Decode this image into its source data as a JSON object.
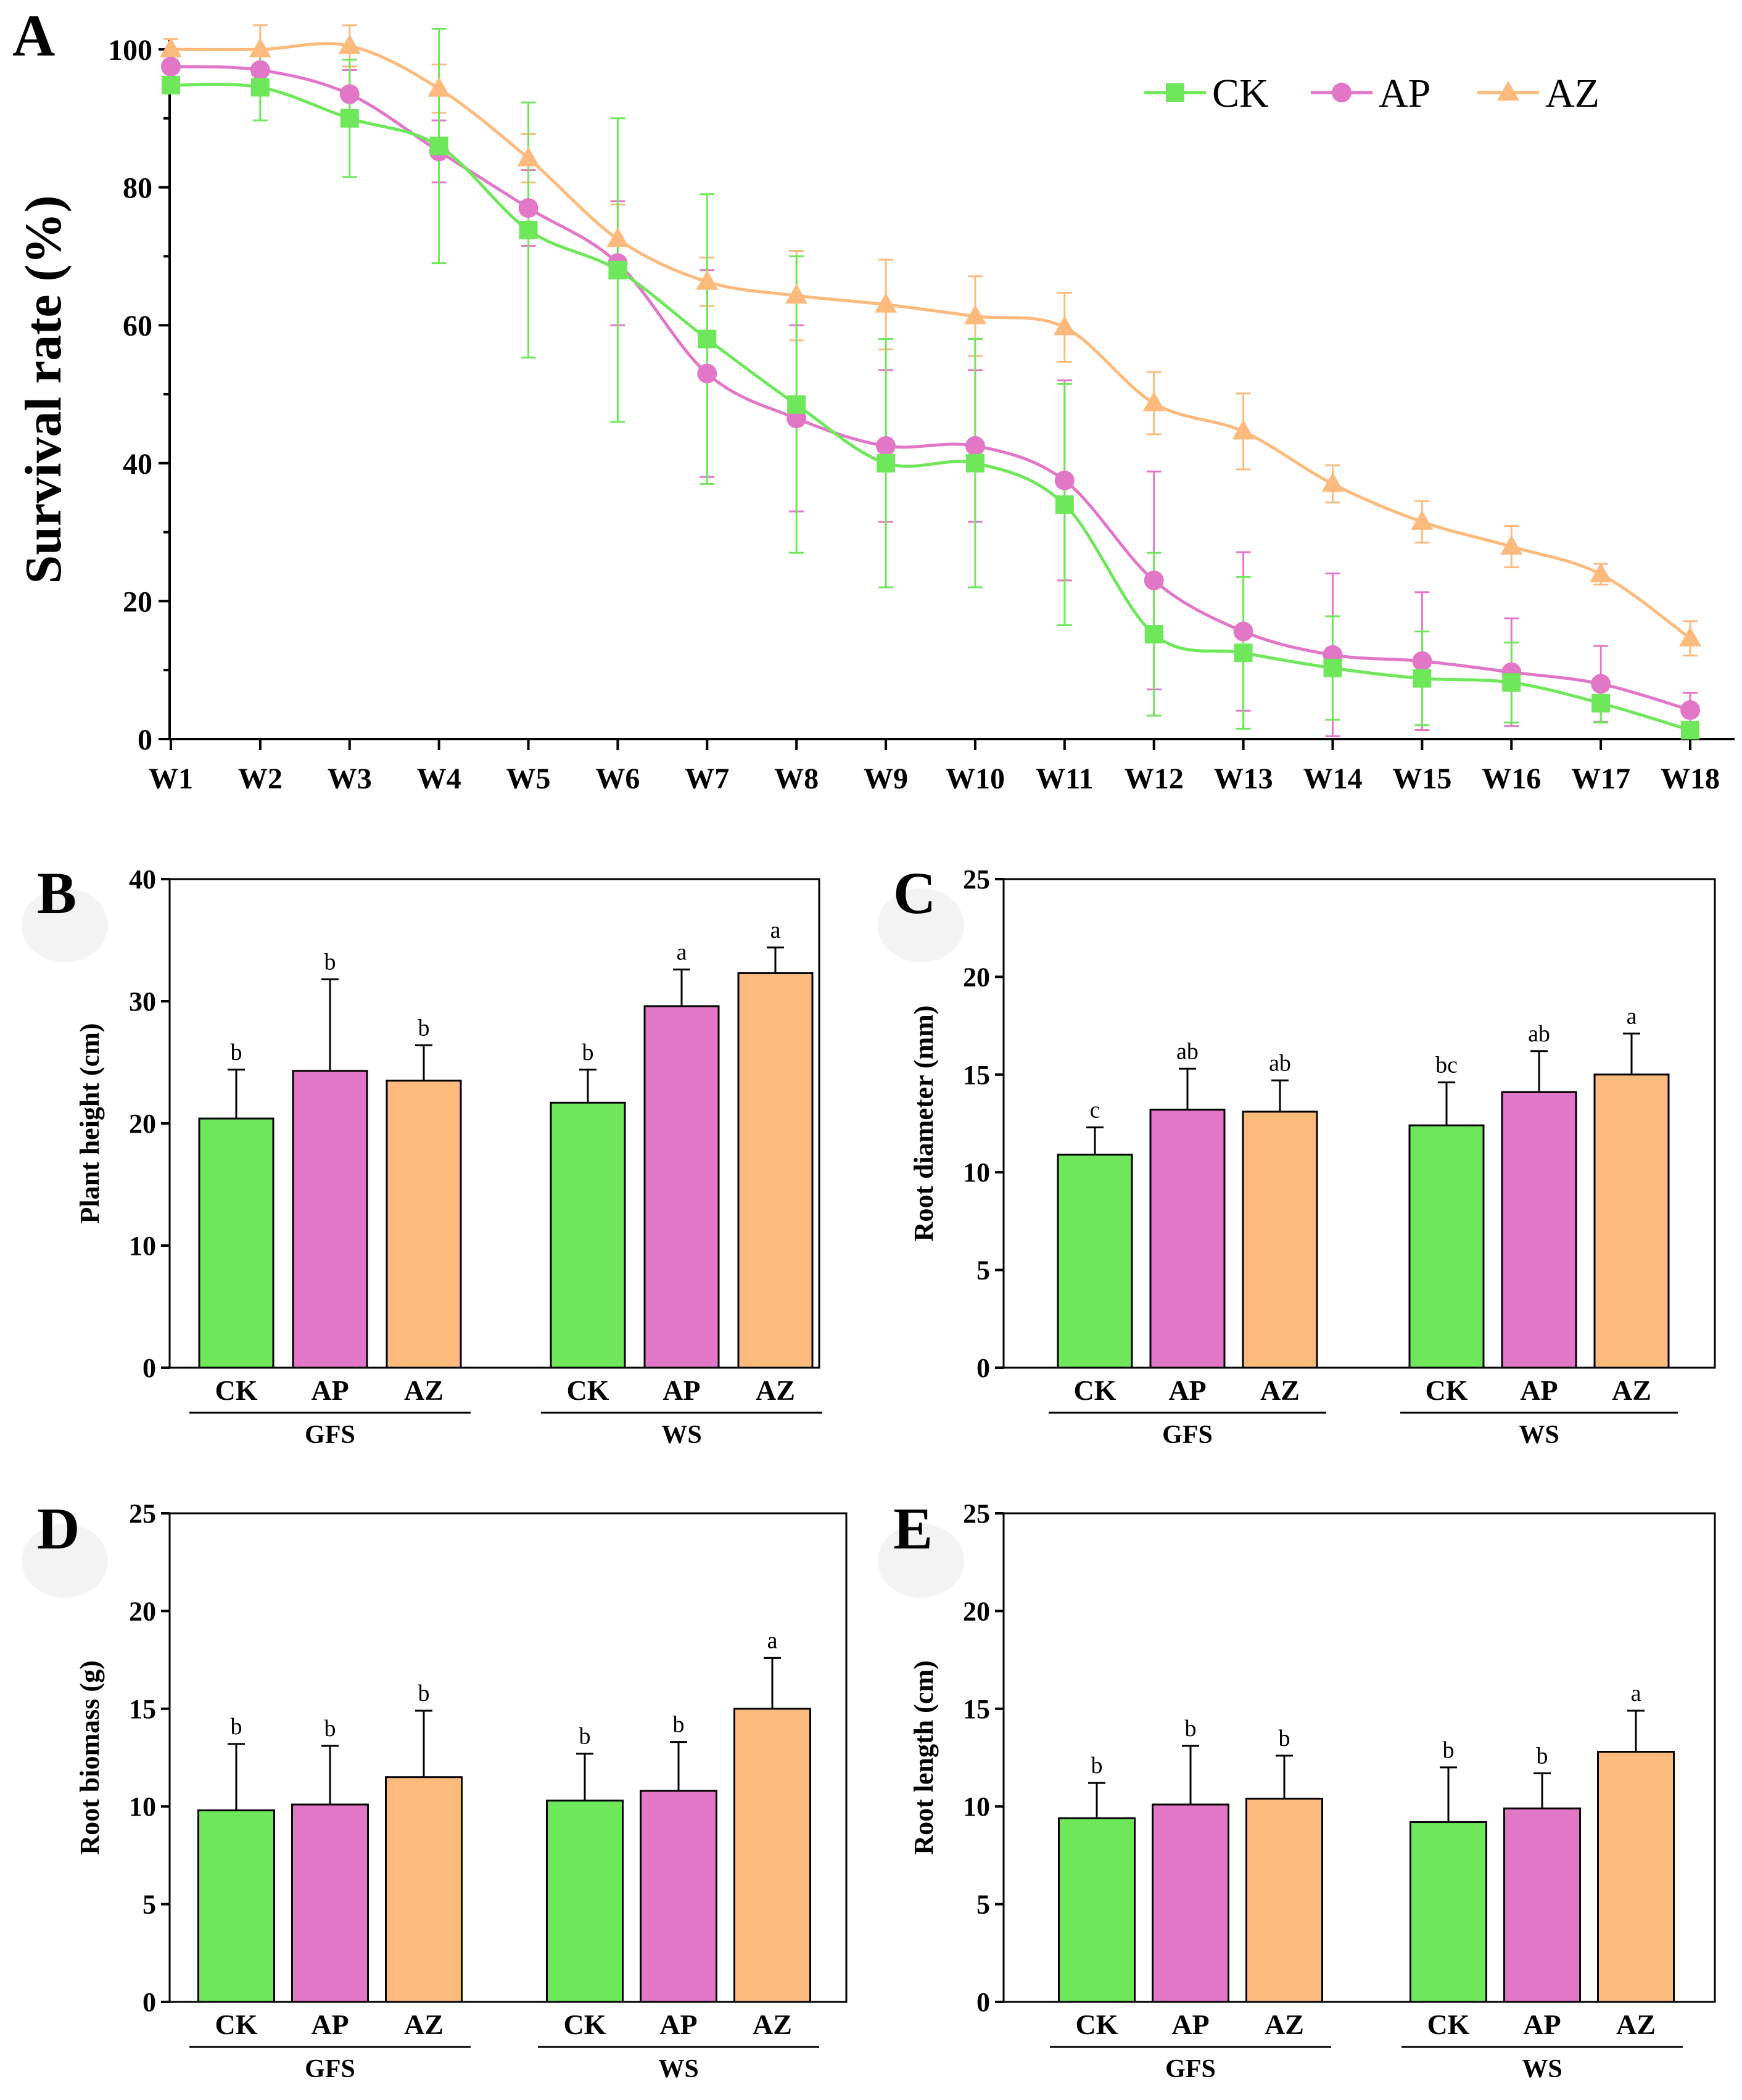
{
  "colors": {
    "CK": "#6ee85a",
    "AP": "#e277c8",
    "AZ": "#fcbb7d",
    "axis": "#000000"
  },
  "chart_data": [
    {
      "panel": "A",
      "type": "line",
      "title": "",
      "xlabel": "",
      "ylabel": "Survival rate (%)",
      "ylim": [
        0,
        100
      ],
      "yticks": [
        0,
        20,
        40,
        60,
        80,
        100
      ],
      "legend_position": "top-right",
      "categories": [
        "W1",
        "W2",
        "W3",
        "W4",
        "W5",
        "W6",
        "W7",
        "W8",
        "W9",
        "W10",
        "W11",
        "W12",
        "W13",
        "W14",
        "W15",
        "W16",
        "W17",
        "W18"
      ],
      "series": [
        {
          "name": "CK",
          "marker": "square",
          "values": [
            94.8,
            94.5,
            90.0,
            86.0,
            73.8,
            68.0,
            58.0,
            48.5,
            40.0,
            40.0,
            34.0,
            15.2,
            12.5,
            10.3,
            8.8,
            8.2,
            5.2,
            1.3
          ],
          "errors": [
            1.2,
            4.8,
            8.5,
            17.0,
            18.5,
            22.0,
            21.0,
            21.5,
            18.0,
            18.0,
            17.5,
            11.8,
            11.0,
            7.5,
            6.8,
            5.8,
            2.8,
            1.0
          ]
        },
        {
          "name": "AP",
          "marker": "circle",
          "values": [
            97.5,
            97.0,
            93.5,
            85.2,
            77.0,
            69.0,
            53.0,
            46.5,
            42.5,
            42.5,
            37.5,
            23.0,
            15.6,
            12.2,
            11.3,
            9.7,
            8.0,
            4.2
          ],
          "errors": [
            1.5,
            2.0,
            3.5,
            4.5,
            5.5,
            9.0,
            15.0,
            13.5,
            11.0,
            11.0,
            14.5,
            15.8,
            11.5,
            11.8,
            10.0,
            7.8,
            5.5,
            2.5
          ]
        },
        {
          "name": "AZ",
          "marker": "triangle",
          "values": [
            100.0,
            100.0,
            100.5,
            94.3,
            84.2,
            72.5,
            66.3,
            64.3,
            63.0,
            61.3,
            59.7,
            48.7,
            44.6,
            37.0,
            31.5,
            27.9,
            23.9,
            14.6
          ],
          "errors": [
            1.5,
            3.5,
            3.0,
            3.5,
            3.5,
            5.0,
            3.5,
            6.5,
            6.5,
            5.8,
            5.0,
            4.5,
            5.5,
            2.7,
            3.0,
            3.0,
            1.5,
            2.5
          ]
        }
      ]
    },
    {
      "panel": "B",
      "type": "bar",
      "ylabel": "Plant height (cm)",
      "ylim": [
        0,
        40
      ],
      "yticks": [
        0,
        10,
        20,
        30,
        40
      ],
      "groups": [
        "GFS",
        "WS"
      ],
      "categories": [
        "CK",
        "AP",
        "AZ"
      ],
      "series": [
        {
          "group": "GFS",
          "values": [
            20.4,
            24.3,
            23.5
          ],
          "errors": [
            4.0,
            7.5,
            2.9
          ],
          "letters": [
            "b",
            "b",
            "b"
          ]
        },
        {
          "group": "WS",
          "values": [
            21.7,
            29.6,
            32.3
          ],
          "errors": [
            2.7,
            3.0,
            2.1
          ],
          "letters": [
            "b",
            "a",
            "a"
          ]
        }
      ]
    },
    {
      "panel": "C",
      "type": "bar",
      "ylabel": "Root diameter (mm)",
      "ylim": [
        0,
        25
      ],
      "yticks": [
        0,
        5,
        10,
        15,
        20,
        25
      ],
      "groups": [
        "GFS",
        "WS"
      ],
      "categories": [
        "CK",
        "AP",
        "AZ"
      ],
      "series": [
        {
          "group": "GFS",
          "values": [
            10.9,
            13.2,
            13.1
          ],
          "errors": [
            1.4,
            2.1,
            1.6
          ],
          "letters": [
            "c",
            "ab",
            "ab"
          ]
        },
        {
          "group": "WS",
          "values": [
            12.4,
            14.1,
            15.0
          ],
          "errors": [
            2.2,
            2.1,
            2.1
          ],
          "letters": [
            "bc",
            "ab",
            "a"
          ]
        }
      ]
    },
    {
      "panel": "D",
      "type": "bar",
      "ylabel": "Root biomass (g)",
      "ylim": [
        0,
        25
      ],
      "yticks": [
        0,
        5,
        10,
        15,
        20,
        25
      ],
      "groups": [
        "GFS",
        "WS"
      ],
      "categories": [
        "CK",
        "AP",
        "AZ"
      ],
      "series": [
        {
          "group": "GFS",
          "values": [
            9.8,
            10.1,
            11.5
          ],
          "errors": [
            3.4,
            3.0,
            3.4
          ],
          "letters": [
            "b",
            "b",
            "b"
          ]
        },
        {
          "group": "WS",
          "values": [
            10.3,
            10.8,
            15.0
          ],
          "errors": [
            2.4,
            2.5,
            2.6
          ],
          "letters": [
            "b",
            "b",
            "a"
          ]
        }
      ]
    },
    {
      "panel": "E",
      "type": "bar",
      "ylabel": "Root length (cm)",
      "ylim": [
        0,
        25
      ],
      "yticks": [
        0,
        5,
        10,
        15,
        20,
        25
      ],
      "groups": [
        "GFS",
        "WS"
      ],
      "categories": [
        "CK",
        "AP",
        "AZ"
      ],
      "series": [
        {
          "group": "GFS",
          "values": [
            9.4,
            10.1,
            10.4
          ],
          "errors": [
            1.8,
            3.0,
            2.2
          ],
          "letters": [
            "b",
            "b",
            "b"
          ]
        },
        {
          "group": "WS",
          "values": [
            9.2,
            9.9,
            12.8
          ],
          "errors": [
            2.8,
            1.8,
            2.1
          ],
          "letters": [
            "b",
            "b",
            "a"
          ]
        }
      ]
    }
  ]
}
